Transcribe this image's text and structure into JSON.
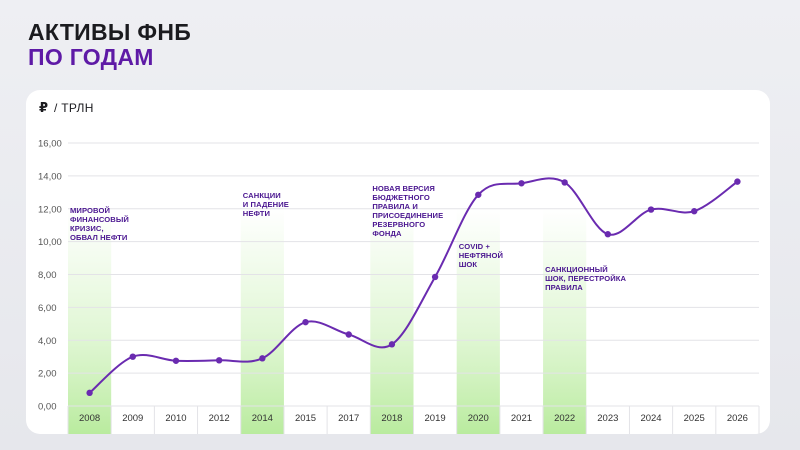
{
  "header": {
    "title_line1": "АКТИВЫ ФНБ",
    "title_line2": "ПО ГОДАМ"
  },
  "colors": {
    "accent": "#5e1aa6",
    "line": "#6a2bb0",
    "highlight": "#c9f0b4"
  },
  "chart_data": {
    "type": "line",
    "unit_symbol": "₽",
    "unit_text": "/ ТРЛН",
    "y_ticks": [
      "0,00",
      "2,00",
      "4,00",
      "6,00",
      "8,00",
      "10,00",
      "12,00",
      "14,00",
      "16,00"
    ],
    "ylim": [
      0,
      16
    ],
    "grid": true,
    "categories": [
      "2008",
      "2009",
      "2010",
      "2012",
      "2014",
      "2015",
      "2017",
      "2018",
      "2019",
      "2020",
      "2021",
      "2022",
      "2023",
      "2024",
      "2025",
      "2026"
    ],
    "values": [
      0.8,
      3.0,
      2.75,
      2.78,
      2.9,
      5.1,
      4.35,
      3.75,
      7.85,
      12.85,
      13.55,
      13.6,
      10.45,
      11.95,
      11.85,
      13.65
    ],
    "highlighted_categories": [
      "2008",
      "2014",
      "2018",
      "2020",
      "2022"
    ],
    "annotations": [
      {
        "category": "2008",
        "lines": [
          "МИРОВОЙ",
          "ФИНАНСОВЫЙ",
          "КРИЗИС,",
          "ОБВАЛ НЕФТИ"
        ]
      },
      {
        "category": "2014",
        "lines": [
          "САНКЦИИ",
          "И ПАДЕНИЕ",
          "НЕФТИ"
        ]
      },
      {
        "category": "2018",
        "lines": [
          "НОВАЯ ВЕРСИЯ",
          "БЮДЖЕТНОГО",
          "ПРАВИЛА И",
          "ПРИСОЕДИНЕНИЕ",
          "РЕЗЕРВНОГО",
          "ФОНДА"
        ]
      },
      {
        "category": "2020",
        "lines": [
          "COVID +",
          "НЕФТЯНОЙ",
          "ШОК"
        ]
      },
      {
        "category": "2022",
        "lines": [
          "САНКЦИОННЫЙ",
          "ШОК, ПЕРЕСТРОЙКА",
          "ПРАВИЛА"
        ]
      }
    ]
  }
}
